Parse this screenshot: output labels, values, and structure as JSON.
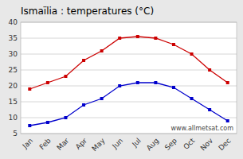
{
  "chart_data": {
    "type": "line",
    "title": "Ismaïlia : temperatures (°C)",
    "categories": [
      "Jan",
      "Feb",
      "Mar",
      "Apr",
      "May",
      "Jun",
      "Jul",
      "Aug",
      "Sep",
      "Oct",
      "Nov",
      "Dec"
    ],
    "series": [
      {
        "color": "#cc0000",
        "marker": "square",
        "values": [
          19,
          21,
          23,
          28,
          31,
          35,
          35.5,
          35,
          33,
          30,
          25,
          21
        ]
      },
      {
        "color": "#0000cc",
        "marker": "square",
        "values": [
          7.5,
          8.5,
          10,
          14,
          16,
          20,
          21,
          21,
          19.5,
          16,
          12.5,
          9
        ]
      }
    ],
    "ylim": [
      5,
      40
    ],
    "yticks": [
      5,
      10,
      15,
      20,
      25,
      30,
      35,
      40
    ],
    "grid": true,
    "annotations": [
      "www.allmetsat.com"
    ]
  }
}
